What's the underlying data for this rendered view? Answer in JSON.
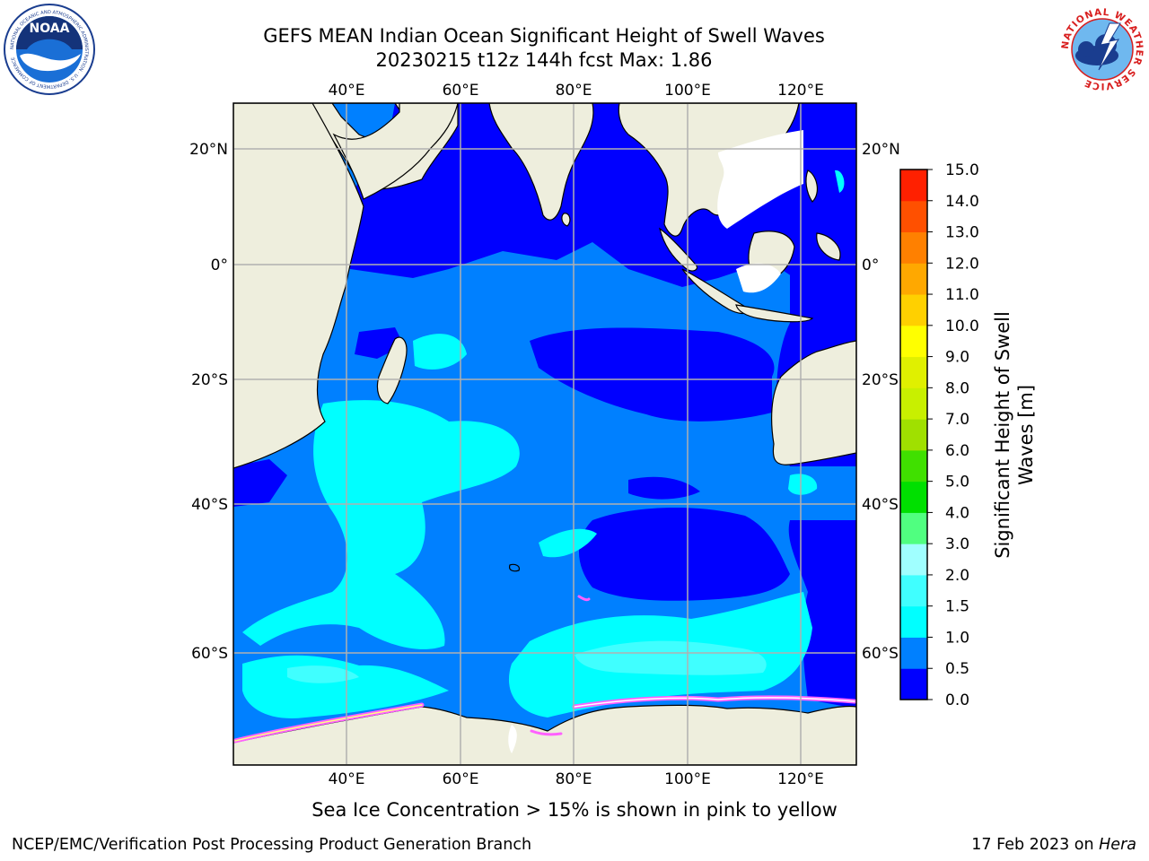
{
  "header": {
    "title_line1": "GEFS MEAN Indian Ocean Significant Height of Swell Waves",
    "title_line2": "20230215 t12z 144h fcst   Max: 1.86"
  },
  "logos": {
    "noaa_text": "NOAA",
    "noaa_ring_text": "NATIONAL OCEANIC AND ATMOSPHERIC ADMINISTRATION · U.S. DEPARTMENT OF COMMERCE",
    "nws_ring_text": "NATIONAL WEATHER SERVICE"
  },
  "map": {
    "lon_ticks": [
      "40°E",
      "60°E",
      "80°E",
      "100°E",
      "120°E"
    ],
    "lat_ticks": [
      "20°N",
      "0°",
      "20°S",
      "40°S",
      "60°S"
    ],
    "ocean_color": "#0000ff",
    "land_color": "#eeeedd"
  },
  "colorbar": {
    "label_line1": "Significant Height of Swell",
    "label_line2": "Waves [m]",
    "levels": [
      "0.0",
      "0.5",
      "1.0",
      "1.5",
      "2.0",
      "3.0",
      "4.0",
      "5.0",
      "6.0",
      "7.0",
      "8.0",
      "9.0",
      "10.0",
      "11.0",
      "12.0",
      "13.0",
      "14.0",
      "15.0"
    ],
    "colors": [
      "#0000ff",
      "#0080ff",
      "#00ffff",
      "#40ffff",
      "#a0ffff",
      "#50ff80",
      "#00e000",
      "#40e000",
      "#a0e000",
      "#c8f000",
      "#e0f000",
      "#ffff00",
      "#ffd000",
      "#ffa800",
      "#ff8000",
      "#ff5000",
      "#ff2000"
    ]
  },
  "note": "Sea Ice Concentration > 15% is shown in pink to yellow",
  "footer": {
    "left": "NCEP/EMC/Verification Post Processing Product Generation Branch",
    "right_prefix": "17 Feb 2023 on ",
    "right_machine": "Hera"
  }
}
